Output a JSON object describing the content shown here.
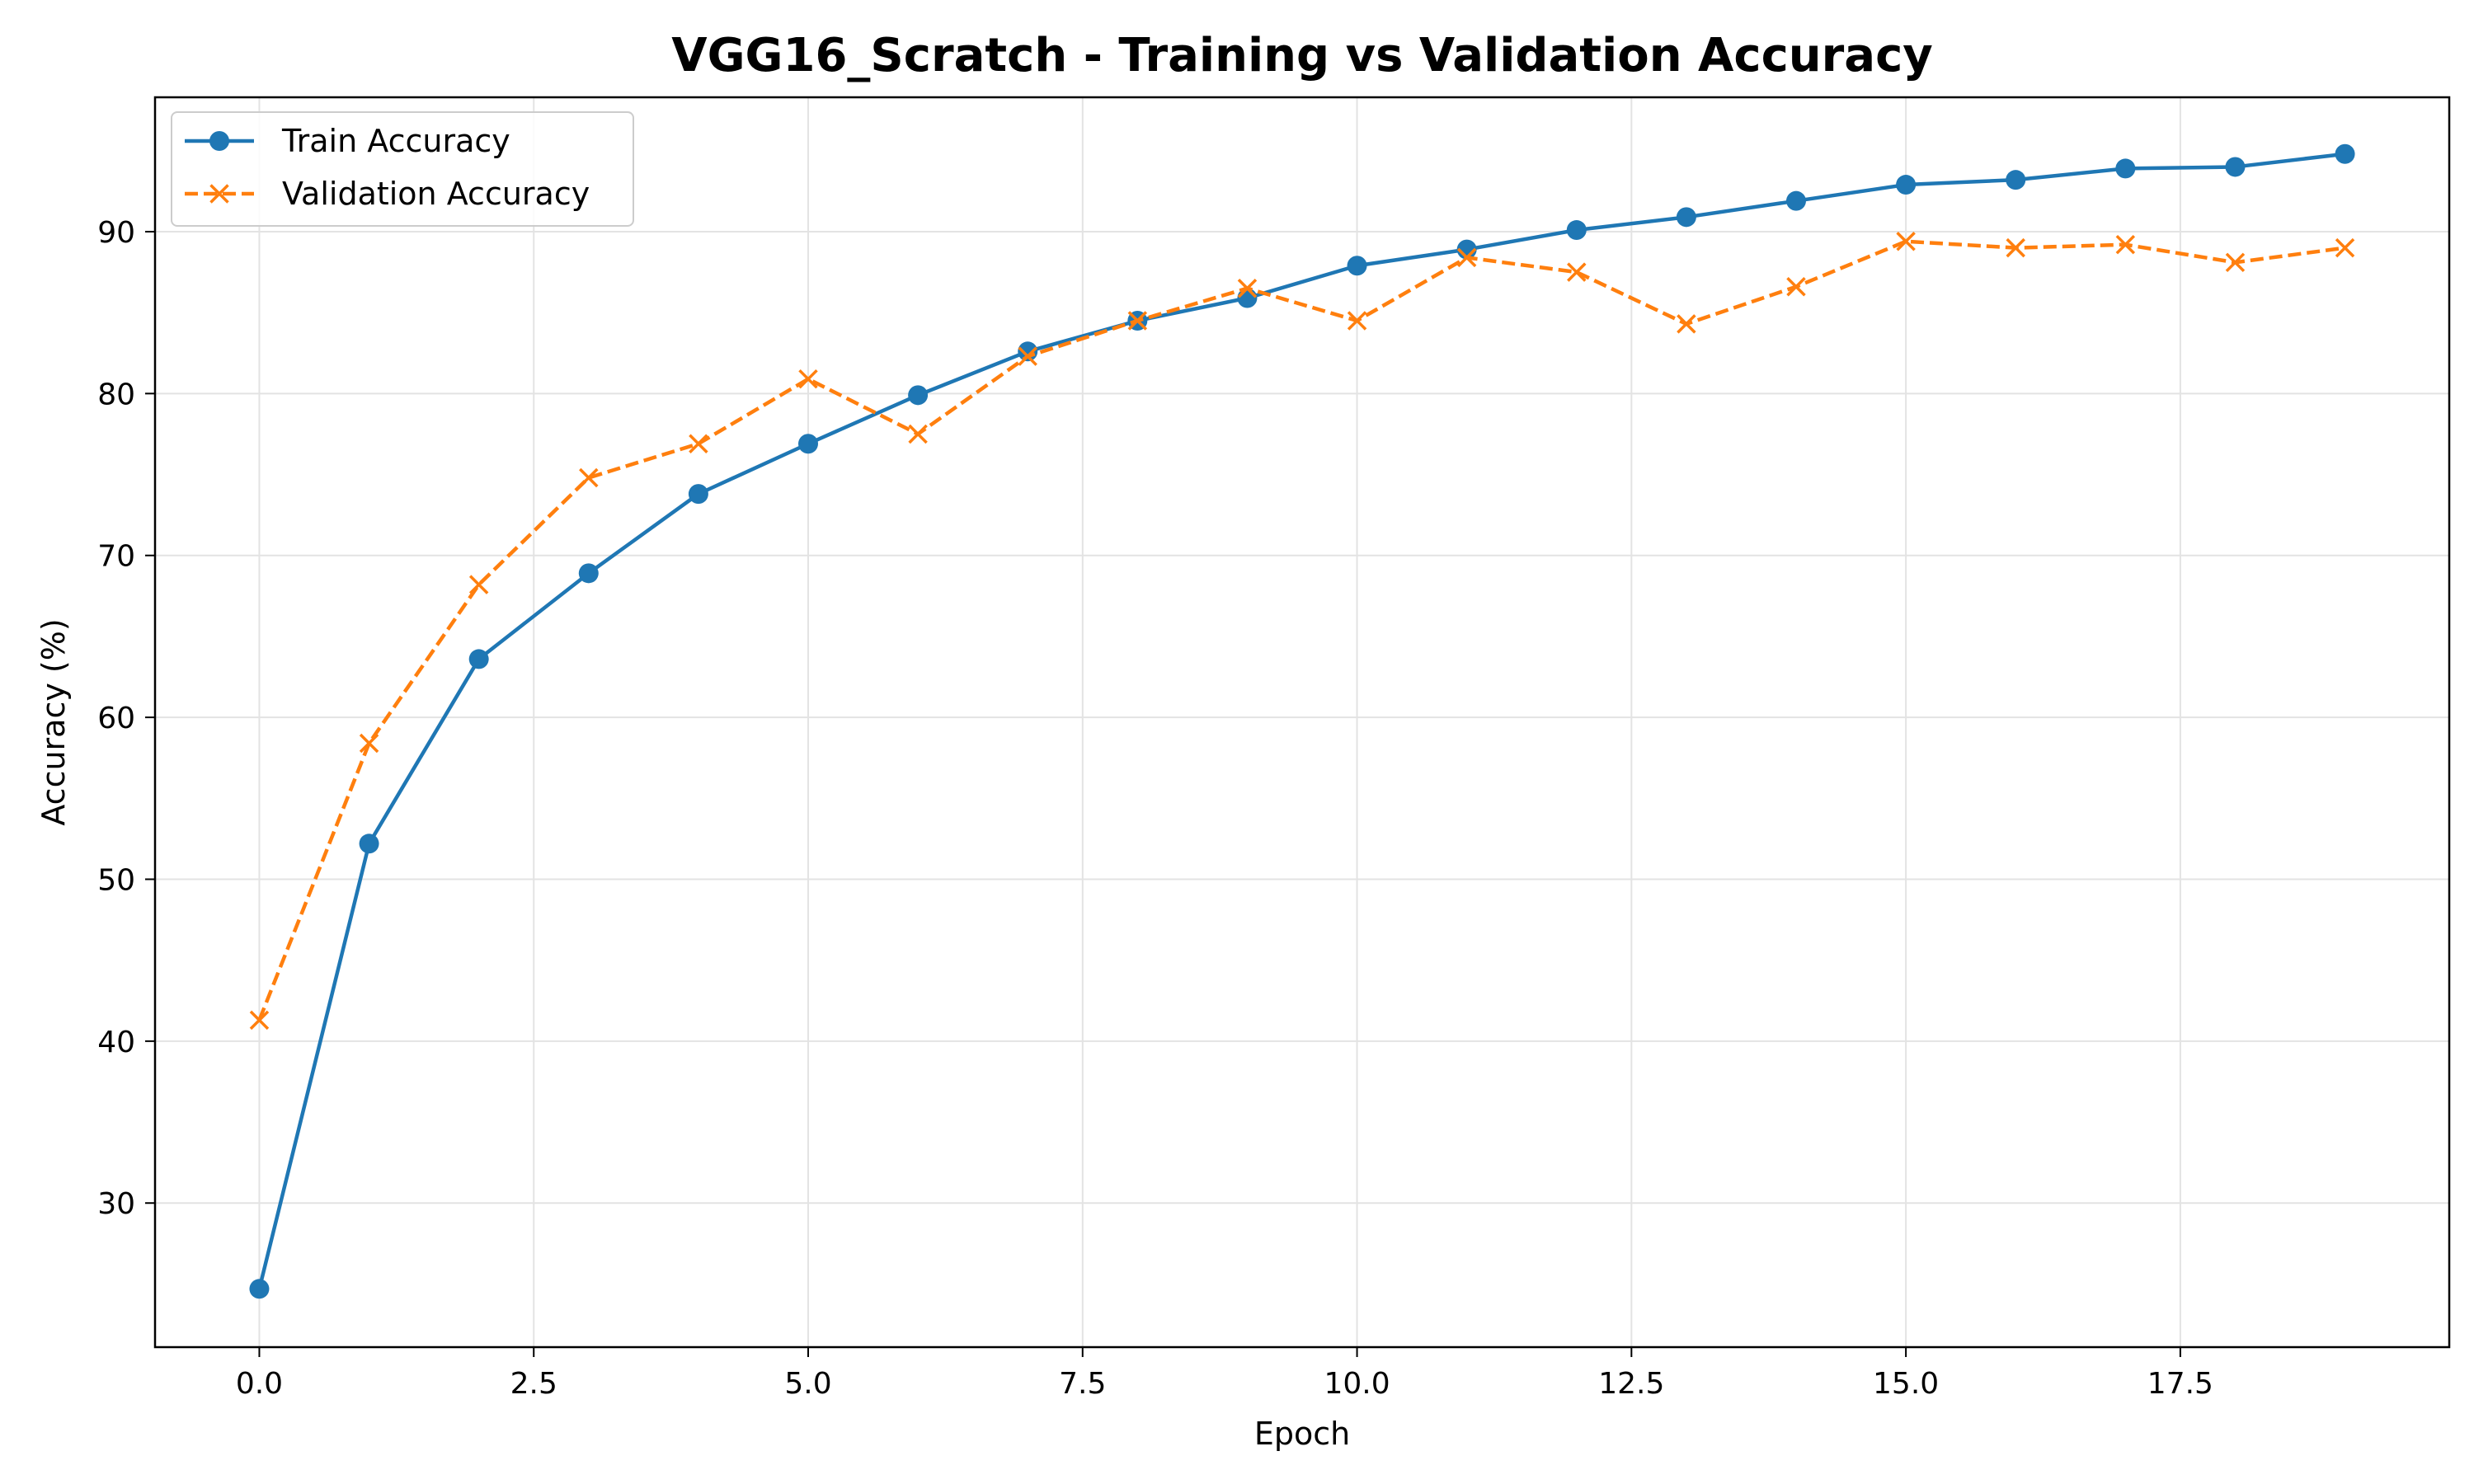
{
  "chart_data": {
    "type": "line",
    "title": "VGG16_Scratch - Training vs Validation Accuracy",
    "xlabel": "Epoch",
    "ylabel": "Accuracy (%)",
    "xlim": [
      -0.95,
      19.95
    ],
    "ylim": [
      21.1,
      98.3
    ],
    "xticks": [
      0,
      2.5,
      5,
      7.5,
      10,
      12.5,
      15,
      17.5
    ],
    "xtick_labels": [
      "0.0",
      "2.5",
      "5.0",
      "7.5",
      "10.0",
      "12.5",
      "15.0",
      "17.5"
    ],
    "yticks": [
      30,
      40,
      50,
      60,
      70,
      80,
      90
    ],
    "ytick_labels": [
      "30",
      "40",
      "50",
      "60",
      "70",
      "80",
      "90"
    ],
    "grid": true,
    "legend_position": "top-left",
    "x": [
      0,
      1,
      2,
      3,
      4,
      5,
      6,
      7,
      8,
      9,
      10,
      11,
      12,
      13,
      14,
      15,
      16,
      17,
      18,
      19
    ],
    "series": [
      {
        "name": "Train Accuracy",
        "color": "#1f77b4",
        "line_style": "solid",
        "marker": "circle",
        "values": [
          24.7,
          52.2,
          63.6,
          68.9,
          73.8,
          76.9,
          79.9,
          82.6,
          84.5,
          85.9,
          87.9,
          88.9,
          90.1,
          90.9,
          91.9,
          92.9,
          93.2,
          93.9,
          94.0,
          94.8
        ]
      },
      {
        "name": "Validation Accuracy",
        "color": "#ff7f0e",
        "line_style": "dashed",
        "marker": "x",
        "values": [
          41.3,
          58.4,
          68.2,
          74.8,
          76.9,
          80.9,
          77.5,
          82.3,
          84.5,
          86.5,
          84.5,
          88.4,
          87.5,
          84.3,
          86.6,
          89.4,
          89.0,
          89.2,
          88.1,
          89.0
        ]
      }
    ]
  }
}
